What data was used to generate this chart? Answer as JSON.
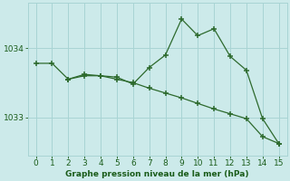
{
  "line1_x": [
    0,
    1,
    2,
    3,
    4,
    5,
    6,
    7,
    8,
    9,
    10,
    11,
    12,
    13,
    14,
    15
  ],
  "line1_y": [
    1033.78,
    1033.78,
    1033.55,
    1033.6,
    1033.6,
    1033.55,
    1033.5,
    1033.42,
    1033.35,
    1033.28,
    1033.2,
    1033.12,
    1033.05,
    1032.98,
    1032.72,
    1032.62
  ],
  "line2_x": [
    2,
    3,
    4,
    5,
    6,
    7,
    8,
    9,
    10,
    11,
    12,
    13,
    14,
    15
  ],
  "line2_y": [
    1033.55,
    1033.62,
    1033.6,
    1033.58,
    1033.48,
    1033.72,
    1033.9,
    1034.42,
    1034.18,
    1034.28,
    1033.88,
    1033.68,
    1032.98,
    1032.62
  ],
  "line_color": "#2d6a2d",
  "bg_color": "#cceaea",
  "grid_color": "#a8d4d4",
  "xlabel": "Graphe pression niveau de la mer (hPa)",
  "xlabel_color": "#1a5c1a",
  "tick_label_color": "#1a5c1a",
  "yticks": [
    1033,
    1034
  ],
  "xticks": [
    0,
    1,
    2,
    3,
    4,
    5,
    6,
    7,
    8,
    9,
    10,
    11,
    12,
    13,
    14,
    15
  ],
  "ylim": [
    1032.45,
    1034.65
  ],
  "xlim": [
    -0.5,
    15.5
  ]
}
